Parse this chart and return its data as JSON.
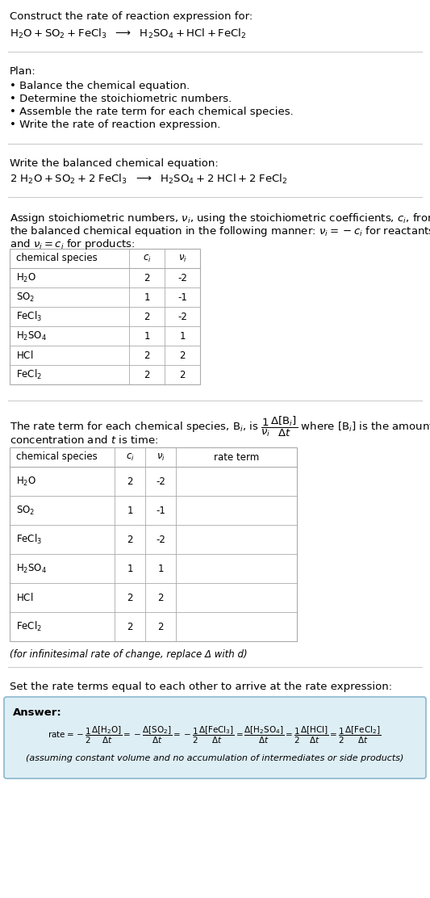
{
  "bg_color": "#ffffff",
  "text_color": "#000000",
  "answer_box_color": "#deeef5",
  "answer_box_edge": "#8ab8cc",
  "title_line1": "Construct the rate of reaction expression for:",
  "plan_header": "Plan:",
  "plan_items": [
    "• Balance the chemical equation.",
    "• Determine the stoichiometric numbers.",
    "• Assemble the rate term for each chemical species.",
    "• Write the rate of reaction expression."
  ],
  "balanced_header": "Write the balanced chemical equation:",
  "table1_headers": [
    "chemical species",
    "c_i",
    "v_i"
  ],
  "table1_rows": [
    [
      "H_2O",
      "2",
      "-2"
    ],
    [
      "SO_2",
      "1",
      "-1"
    ],
    [
      "FeCl_3",
      "2",
      "-2"
    ],
    [
      "H_2SO_4",
      "1",
      "1"
    ],
    [
      "HCl",
      "2",
      "2"
    ],
    [
      "FeCl_2",
      "2",
      "2"
    ]
  ],
  "table2_rows": [
    [
      "H_2O",
      "2",
      "-2"
    ],
    [
      "SO_2",
      "1",
      "-1"
    ],
    [
      "FeCl_3",
      "2",
      "-2"
    ],
    [
      "H_2SO_4",
      "1",
      "1"
    ],
    [
      "HCl",
      "2",
      "2"
    ],
    [
      "FeCl_2",
      "2",
      "2"
    ]
  ],
  "infinitesimal_note": "(for infinitesimal rate of change, replace Δ with d)",
  "set_equal_text": "Set the rate terms equal to each other to arrive at the rate expression:",
  "answer_label": "Answer:",
  "answer_note": "(assuming constant volume and no accumulation of intermediates or side products)"
}
